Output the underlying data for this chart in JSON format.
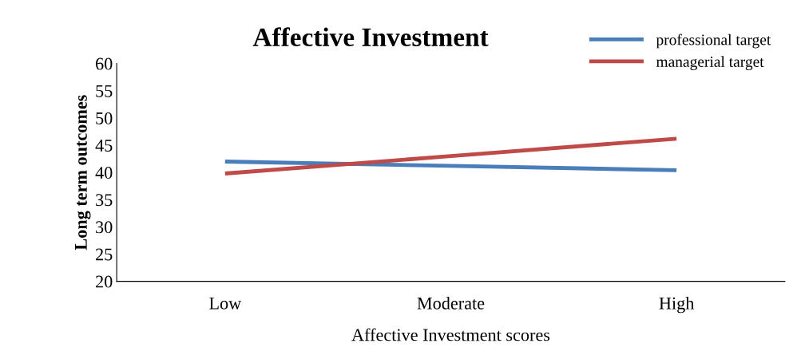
{
  "chart_data": {
    "type": "line",
    "title": "Affective Investment",
    "xlabel": "Affective Investment scores",
    "ylabel": "Long term outcomes",
    "categories": [
      "Low",
      "Moderate",
      "High"
    ],
    "series": [
      {
        "name": "professional target",
        "color": "#4a7ebb",
        "values": [
          42.0,
          41.2,
          40.4
        ]
      },
      {
        "name": "managerial target",
        "color": "#be4b48",
        "values": [
          39.8,
          43.0,
          46.2
        ]
      }
    ],
    "ylim": [
      20,
      60
    ],
    "yticks": [
      20,
      25,
      30,
      35,
      40,
      45,
      50,
      55,
      60
    ],
    "grid": false,
    "legend": "top right",
    "marker": "none",
    "line_style": "solid"
  }
}
